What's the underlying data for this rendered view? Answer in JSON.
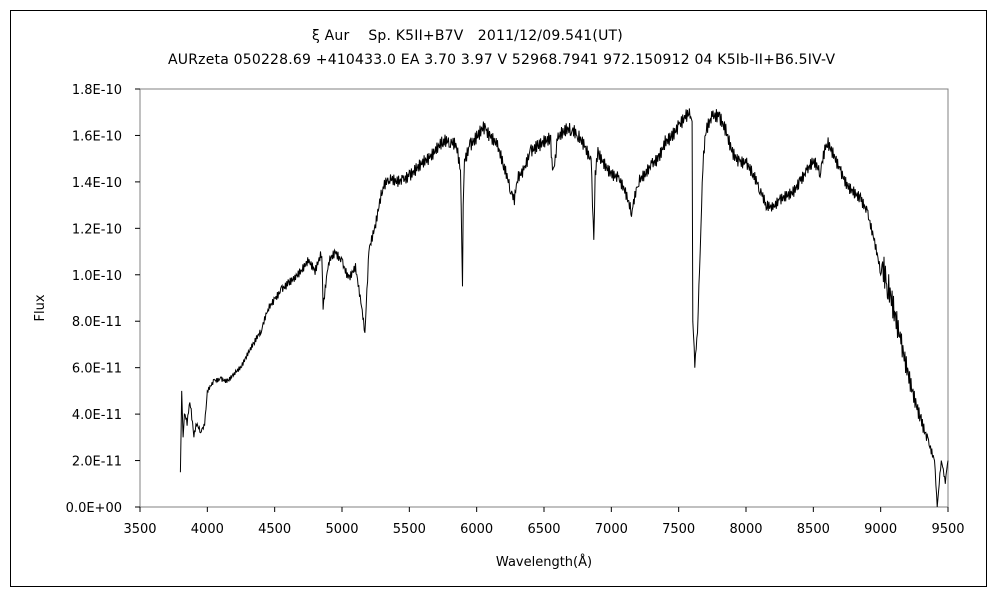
{
  "chart_data": {
    "type": "line",
    "title": "ξ Aur　 Sp. K5II+B7V　2011/12/09.541(UT)",
    "subtitle": "AURzeta 050228.69 +410433.0 EA 3.70 3.97 V 52968.7941 972.150912 04 K5Ib-II+B6.5IV-V",
    "xlabel": "Wavelength(Å)",
    "ylabel": "Flux",
    "xlim": [
      3500,
      9500
    ],
    "ylim": [
      0,
      1.8e-10
    ],
    "x_ticks": [
      3500,
      4000,
      4500,
      5000,
      5500,
      6000,
      6500,
      7000,
      7500,
      8000,
      8500,
      9000,
      9500
    ],
    "x_tick_labels": [
      "3500",
      "4000",
      "4500",
      "5000",
      "5500",
      "6000",
      "6500",
      "7000",
      "7500",
      "8000",
      "8500",
      "9000",
      "9500"
    ],
    "y_ticks": [
      0,
      2e-11,
      4e-11,
      6e-11,
      8e-11,
      1e-10,
      1.2e-10,
      1.4e-10,
      1.6e-10,
      1.8e-10
    ],
    "y_tick_labels": [
      "0.0E+00",
      "2.0E-11",
      "4.0E-11",
      "6.0E-11",
      "8.0E-11",
      "1.0E-10",
      "1.2E-10",
      "1.4E-10",
      "1.6E-10",
      "1.8E-10"
    ],
    "grid": false,
    "legend": "none",
    "series": [
      {
        "color": "#000000",
        "x": [
          3800,
          3810,
          3820,
          3830,
          3850,
          3870,
          3900,
          3920,
          3950,
          3980,
          4000,
          4050,
          4100,
          4150,
          4200,
          4250,
          4300,
          4350,
          4400,
          4450,
          4500,
          4550,
          4600,
          4650,
          4700,
          4750,
          4800,
          4850,
          4860,
          4900,
          4950,
          5000,
          5050,
          5100,
          5150,
          5170,
          5200,
          5250,
          5300,
          5350,
          5400,
          5450,
          5500,
          5550,
          5600,
          5650,
          5700,
          5750,
          5800,
          5850,
          5880,
          5895,
          5900,
          5910,
          5950,
          6000,
          6050,
          6065,
          6100,
          6150,
          6200,
          6250,
          6280,
          6300,
          6350,
          6400,
          6450,
          6500,
          6550,
          6563,
          6600,
          6650,
          6700,
          6750,
          6800,
          6850,
          6870,
          6880,
          6900,
          6950,
          7000,
          7050,
          7100,
          7150,
          7200,
          7250,
          7300,
          7350,
          7400,
          7450,
          7500,
          7550,
          7590,
          7600,
          7605,
          7620,
          7640,
          7660,
          7680,
          7700,
          7750,
          7800,
          7850,
          7900,
          7950,
          8000,
          8050,
          8100,
          8150,
          8200,
          8250,
          8300,
          8350,
          8400,
          8450,
          8500,
          8550,
          8600,
          8650,
          8700,
          8750,
          8800,
          8850,
          8900,
          8950,
          9000,
          9050,
          9100,
          9150,
          9200,
          9250,
          9300,
          9350,
          9400,
          9420,
          9450,
          9480,
          9500
        ],
        "y": [
          1.5e-11,
          5e-11,
          3e-11,
          4e-11,
          3.5e-11,
          4.5e-11,
          3e-11,
          3.5e-11,
          3.2e-11,
          3.5e-11,
          5e-11,
          5.5e-11,
          5.6e-11,
          5.5e-11,
          5.8e-11,
          6e-11,
          6.5e-11,
          7e-11,
          7.5e-11,
          8.5e-11,
          9e-11,
          9.5e-11,
          9.8e-11,
          1e-10,
          1.02e-10,
          1.05e-10,
          1e-10,
          1.08e-10,
          8.5e-11,
          1.05e-10,
          1.1e-10,
          1.07e-10,
          1e-10,
          1.05e-10,
          8.5e-11,
          7.5e-11,
          1.1e-10,
          1.2e-10,
          1.35e-10,
          1.4e-10,
          1.4e-10,
          1.42e-10,
          1.45e-10,
          1.48e-10,
          1.5e-10,
          1.5e-10,
          1.52e-10,
          1.55e-10,
          1.55e-10,
          1.55e-10,
          1.45e-10,
          9.5e-11,
          1.3e-10,
          1.5e-10,
          1.58e-10,
          1.62e-10,
          1.66e-10,
          1.64e-10,
          1.6e-10,
          1.55e-10,
          1.45e-10,
          1.35e-10,
          1.3e-10,
          1.4e-10,
          1.45e-10,
          1.55e-10,
          1.58e-10,
          1.6e-10,
          1.6e-10,
          1.45e-10,
          1.58e-10,
          1.6e-10,
          1.6e-10,
          1.58e-10,
          1.55e-10,
          1.5e-10,
          1.15e-10,
          1.45e-10,
          1.55e-10,
          1.5e-10,
          1.45e-10,
          1.42e-10,
          1.35e-10,
          1.25e-10,
          1.38e-10,
          1.42e-10,
          1.48e-10,
          1.52e-10,
          1.6e-10,
          1.62e-10,
          1.65e-10,
          1.67e-10,
          1.68e-10,
          1.66e-10,
          8e-11,
          6e-11,
          7.5e-11,
          1.1e-10,
          1.45e-10,
          1.6e-10,
          1.68e-10,
          1.7e-10,
          1.65e-10,
          1.55e-10,
          1.5e-10,
          1.48e-10,
          1.42e-10,
          1.35e-10,
          1.28e-10,
          1.28e-10,
          1.33e-10,
          1.36e-10,
          1.38e-10,
          1.42e-10,
          1.45e-10,
          1.48e-10,
          1.42e-10,
          1.55e-10,
          1.5e-10,
          1.45e-10,
          1.4e-10,
          1.38e-10,
          1.35e-10,
          1.28e-10,
          1.15e-10,
          1e-10,
          9e-11,
          8e-11,
          7e-11,
          6e-11,
          5e-11,
          4e-11,
          3e-11,
          2e-11,
          0,
          2e-11,
          1e-11,
          2e-11
        ]
      }
    ]
  }
}
